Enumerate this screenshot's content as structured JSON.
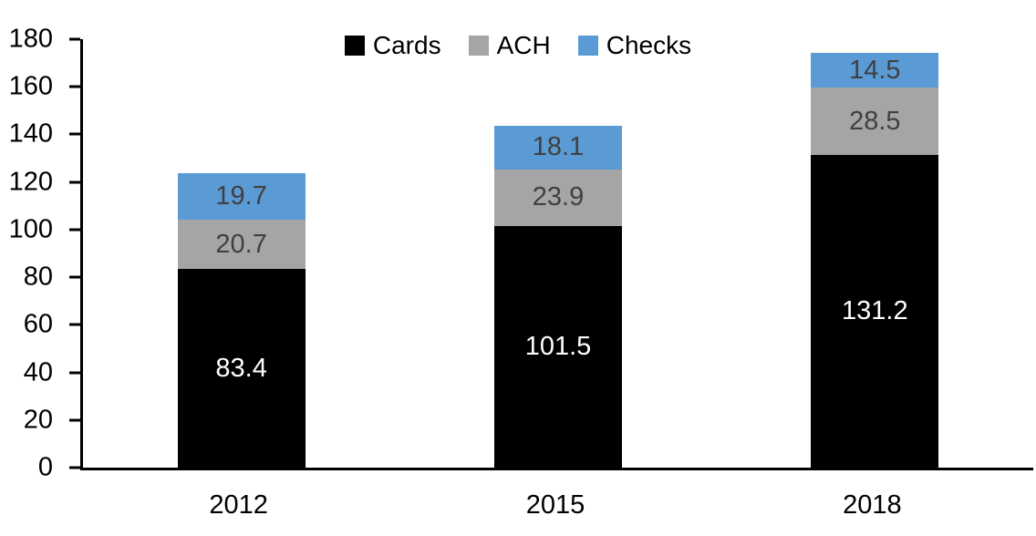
{
  "chart_data": {
    "type": "bar",
    "stacked": true,
    "title": "",
    "xlabel": "",
    "ylabel": "",
    "categories": [
      "2012",
      "2015",
      "2018"
    ],
    "series": [
      {
        "name": "Cards",
        "values": [
          83.4,
          101.5,
          131.2
        ],
        "color": "#000000",
        "label_color": "#FFFFFF"
      },
      {
        "name": "ACH",
        "values": [
          20.7,
          23.9,
          28.5
        ],
        "color": "#A5A5A5",
        "label_color": "#404040"
      },
      {
        "name": "Checks",
        "values": [
          19.7,
          18.1,
          14.5
        ],
        "color": "#5B9BD5",
        "label_color": "#404040"
      }
    ],
    "ylim": [
      0,
      180
    ],
    "yticks": [
      0,
      20,
      40,
      60,
      80,
      100,
      120,
      140,
      160,
      180
    ],
    "grid": false,
    "legend_position": "top-center",
    "bar_labels_shown": true,
    "axis_color": "#000000"
  }
}
